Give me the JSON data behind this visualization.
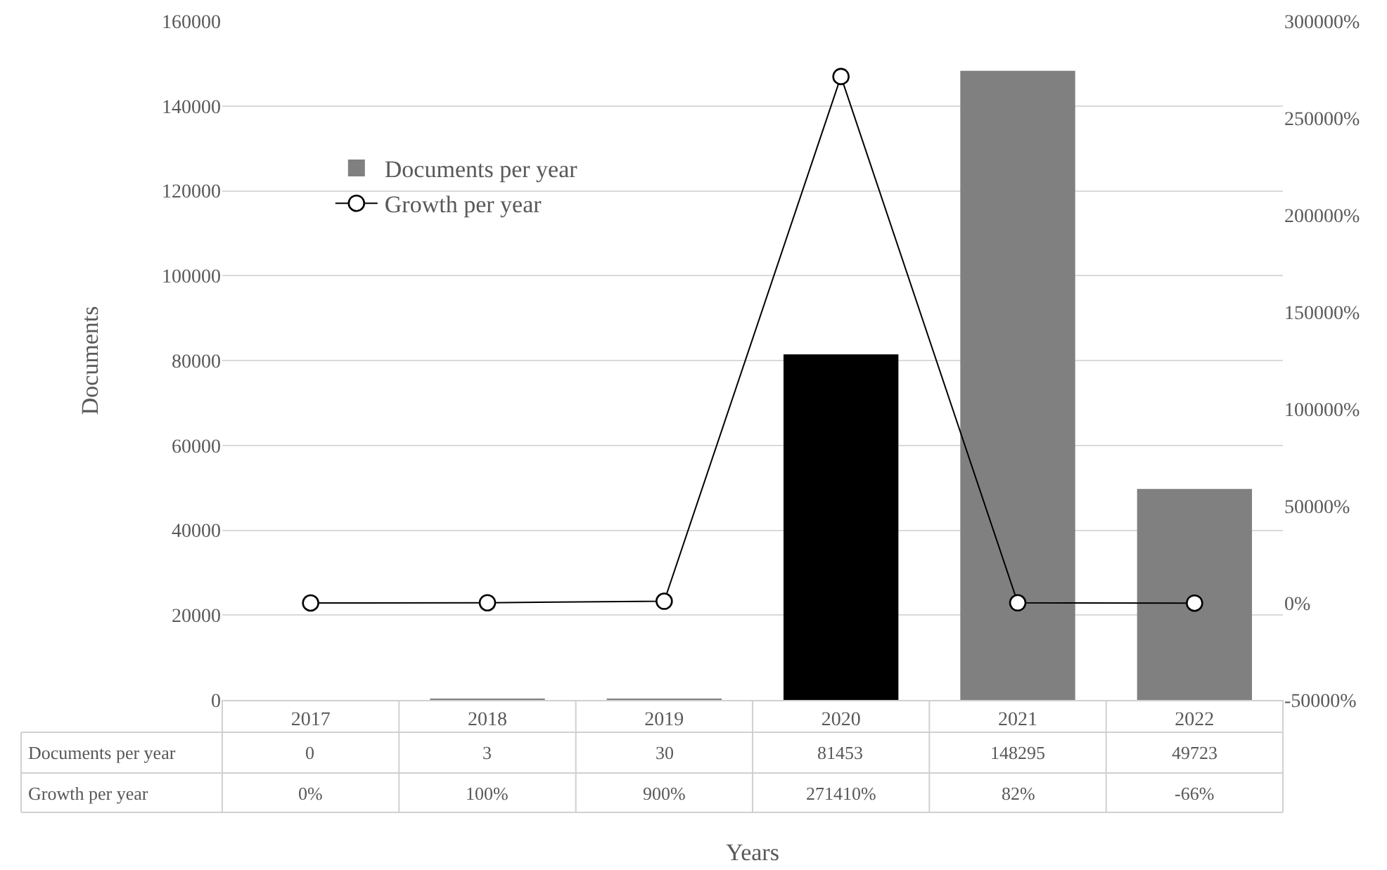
{
  "chart_data": {
    "type": "bar",
    "xlabel": "Years",
    "ylabel": "Documents",
    "categories": [
      "2017",
      "2018",
      "2019",
      "2020",
      "2021",
      "2022"
    ],
    "series": [
      {
        "name": "Documents per year",
        "colors": [
          "#808080",
          "#808080",
          "#808080",
          "#000000",
          "#808080",
          "#808080"
        ],
        "values": [
          0,
          3,
          30,
          81453,
          148295,
          49723
        ],
        "value_labels": [
          "0",
          "3",
          "30",
          "81453",
          "148295",
          "49723"
        ]
      },
      {
        "name": "Growth per year",
        "type": "line",
        "axis": "y2",
        "color": "#000000",
        "marker": "circle",
        "values": [
          0,
          100,
          900,
          271410,
          82,
          -66
        ],
        "value_labels": [
          "0%",
          "100%",
          "900%",
          "271410%",
          "82%",
          "-66%"
        ]
      }
    ],
    "ylim": [
      0,
      160000
    ],
    "yticks": [
      0,
      20000,
      40000,
      60000,
      80000,
      100000,
      120000,
      140000,
      160000
    ],
    "y2lim": [
      -50000,
      300000
    ],
    "y2ticks": [
      {
        "value": -50000,
        "label": "-50000%"
      },
      {
        "value": 0,
        "label": "0%"
      },
      {
        "value": 50000,
        "label": "50000%"
      },
      {
        "value": 100000,
        "label": "100000%"
      },
      {
        "value": 150000,
        "label": "150000%"
      },
      {
        "value": 200000,
        "label": "200000%"
      },
      {
        "value": 250000,
        "label": "250000%"
      },
      {
        "value": 300000,
        "label": "300000%"
      }
    ],
    "grid": "y",
    "legend": "top left"
  }
}
